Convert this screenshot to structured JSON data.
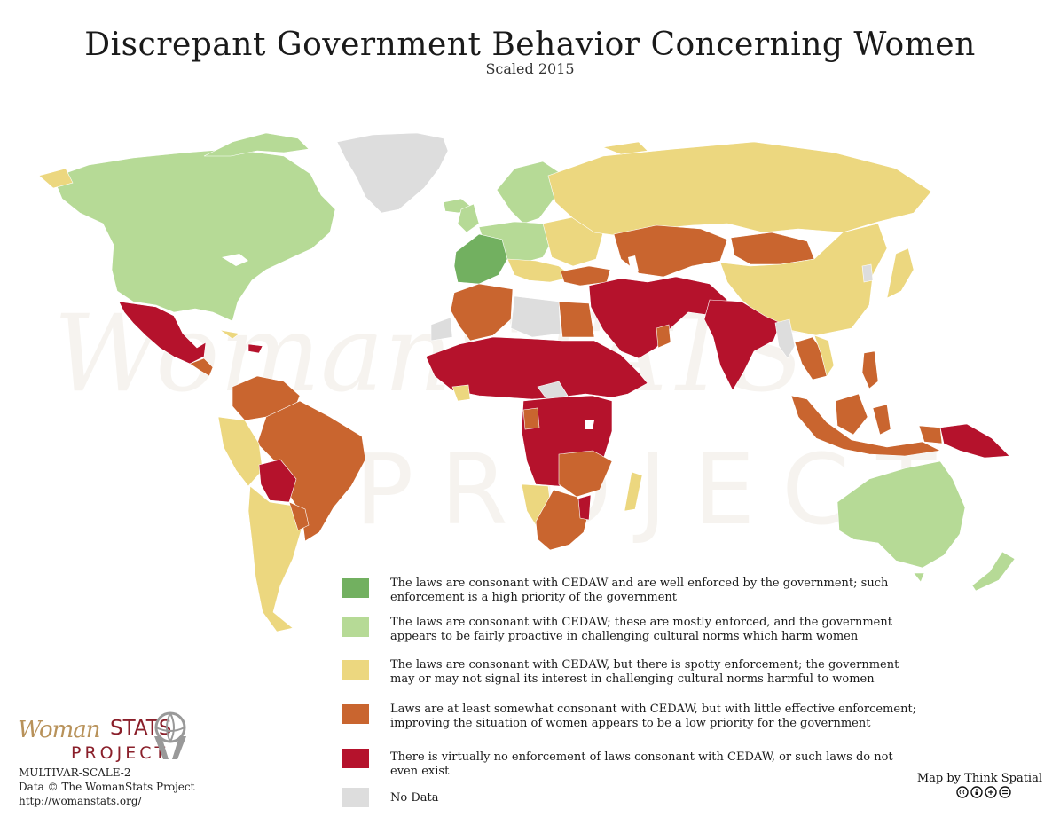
{
  "header": {
    "title": "Discrepant Government Behavior Concerning Women",
    "subtitle": "Scaled 2015"
  },
  "watermark": {
    "word1": "WomanSTATS",
    "word2": "PROJECT"
  },
  "legend": {
    "items": [
      {
        "color": "#72b060",
        "text": "The laws are consonant with CEDAW and are well enforced by the government; such enforcement is a high priority of the government"
      },
      {
        "color": "#b6da96",
        "text": "The laws are consonant with CEDAW; these are mostly enforced, and the government appears to be fairly proactive in challenging cultural norms which harm women"
      },
      {
        "color": "#ecd77f",
        "text": "The laws are consonant with CEDAW, but there is spotty enforcement; the government may or may not signal its interest in challenging cultural norms harmful to women"
      },
      {
        "color": "#c9652f",
        "text": "Laws are at least somewhat consonant with CEDAW, but with little effective enforcement; improving the situation of women appears to be a low priority for the government"
      },
      {
        "color": "#b5122c",
        "text": "There is virtually no enforcement of laws consonant with CEDAW, or such laws do not even exist"
      },
      {
        "color": "#dddddd",
        "text": "No Data"
      }
    ]
  },
  "brand": {
    "woman": "Woman",
    "stats": "STATS",
    "project": "PROJECT"
  },
  "footer": {
    "code": "MULTIVAR-SCALE-2",
    "copyright": "Data © The WomanStats Project",
    "url": "http://womanstats.org/",
    "mapby": "Map by Think Spatial"
  },
  "colors": {
    "level1": "#72b060",
    "level2": "#b6da96",
    "level3": "#ecd77f",
    "level4": "#c9652f",
    "level5": "#b5122c",
    "nodata": "#dddddd"
  }
}
